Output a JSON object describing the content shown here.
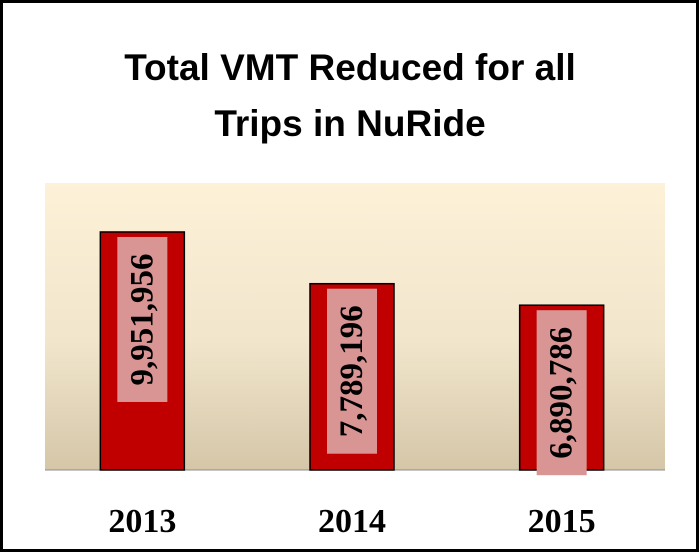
{
  "chart_data": {
    "type": "bar",
    "title": "Total VMT Reduced for all Trips in NuRide",
    "categories": [
      "2013",
      "2014",
      "2015"
    ],
    "values": [
      9951956,
      7789196,
      6890786
    ],
    "value_labels": [
      "9,951,956",
      "7,789,196",
      "6,890,786"
    ],
    "color": "#c00000",
    "ylim": [
      0,
      12000000
    ]
  }
}
